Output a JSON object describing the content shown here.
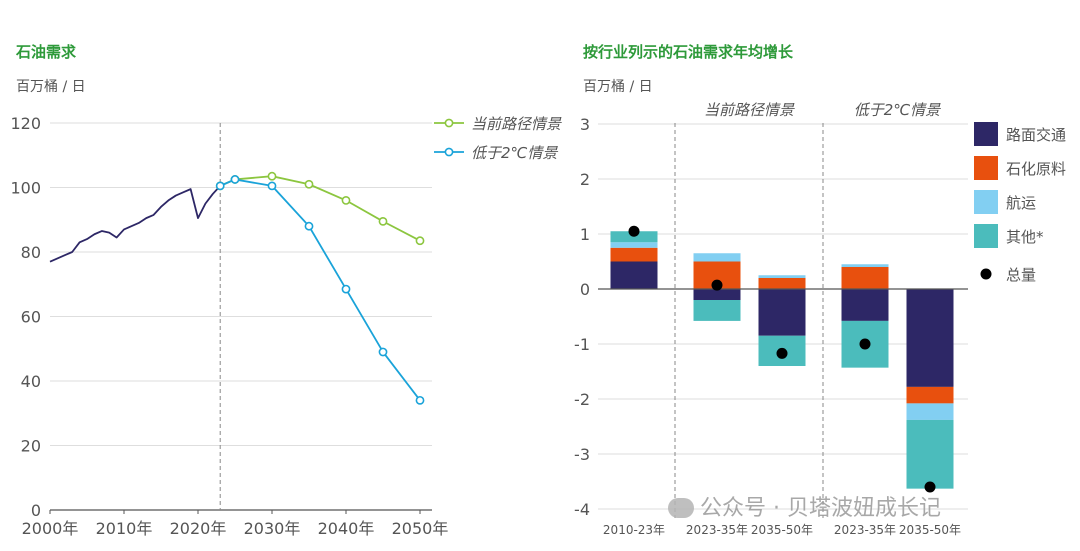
{
  "left_chart": {
    "title": "石油需求",
    "unit": "百万桶 / 日"
  },
  "right_chart": {
    "title": "按行业列示的石油需求年均增长",
    "unit": "百万桶 / 日"
  },
  "watermark": "公众号 · 贝塔波妞成长记",
  "chart_data": [
    {
      "type": "line",
      "title": "石油需求",
      "ylabel": "百万桶 / 日",
      "ylim": [
        0,
        120
      ],
      "yticks": [
        0,
        20,
        40,
        60,
        80,
        100,
        120
      ],
      "xlim": [
        2000,
        2050
      ],
      "xticks": [
        2000,
        2010,
        2020,
        2030,
        2040,
        2050
      ],
      "xtick_labels": [
        "2000年",
        "2010年",
        "2020年",
        "2030年",
        "2040年",
        "2050年"
      ],
      "legend_position": "top-right",
      "historical": {
        "x": [
          2000,
          2001,
          2002,
          2003,
          2004,
          2005,
          2006,
          2007,
          2008,
          2009,
          2010,
          2011,
          2012,
          2013,
          2014,
          2015,
          2016,
          2017,
          2018,
          2019,
          2020,
          2021,
          2022,
          2023
        ],
        "y": [
          77,
          78,
          79,
          80,
          83,
          84,
          85.5,
          86.5,
          86,
          84.5,
          87,
          88,
          89,
          90.5,
          91.5,
          94,
          96,
          97.5,
          98.5,
          99.5,
          90.5,
          95,
          98,
          100.5
        ],
        "color": "#2d2766"
      },
      "series": [
        {
          "name": "当前路径情景",
          "color": "#8cc63f",
          "x": [
            2023,
            2025,
            2030,
            2035,
            2040,
            2045,
            2050
          ],
          "y": [
            100.5,
            102.5,
            103.5,
            101,
            96,
            89.5,
            83.5
          ]
        },
        {
          "name": "低于2℃情景",
          "color": "#1aa3d9",
          "x": [
            2023,
            2025,
            2030,
            2035,
            2040,
            2045,
            2050
          ],
          "y": [
            100.5,
            102.5,
            100.5,
            88,
            68.5,
            49,
            34
          ]
        }
      ],
      "vline_x": 2023
    },
    {
      "type": "bar",
      "stacked": true,
      "title": "按行业列示的石油需求年均增长",
      "ylabel": "百万桶 / 日",
      "ylim": [
        -4,
        3
      ],
      "yticks": [
        3,
        2,
        1,
        0,
        -1,
        -2,
        -3,
        -4
      ],
      "ytick_labels": [
        "3",
        "2",
        "1",
        "0",
        "-1",
        "-2",
        "-3",
        "-4"
      ],
      "categories": [
        "2010-23年",
        "2023-35年",
        "2035-50年",
        "2023-35年",
        "2035-50年"
      ],
      "groups": [
        "当前路径情景",
        "低于2℃情景"
      ],
      "legend_position": "right",
      "series": [
        {
          "name": "路面交通",
          "color": "#2d2766",
          "values": [
            0.5,
            -0.2,
            -0.85,
            -0.58,
            -1.78
          ]
        },
        {
          "name": "石化原料",
          "color": "#e8500e",
          "values": [
            0.25,
            0.5,
            0.2,
            0.4,
            -0.3
          ]
        },
        {
          "name": "航运",
          "color": "#82cff2",
          "values": [
            0.1,
            0.15,
            0.05,
            0.05,
            -0.3
          ]
        },
        {
          "name": "其他*",
          "color": "#4bbcbc",
          "values": [
            0.2,
            -0.38,
            -0.55,
            -0.85,
            -1.25
          ]
        }
      ],
      "totals": {
        "name": "总量",
        "color": "#000000",
        "values": [
          1.05,
          0.07,
          -1.17,
          -1.0,
          -3.6
        ]
      }
    }
  ]
}
